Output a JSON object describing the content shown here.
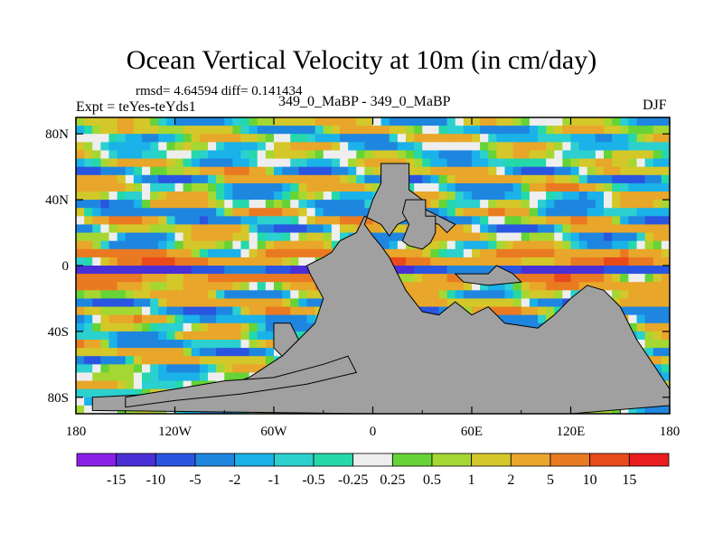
{
  "chart_data": {
    "type": "heatmap",
    "title": "Ocean Vertical Velocity at 10m (in cm/day)",
    "stats_text": "rmsd= 4.64594 diff= 0.141434",
    "experiment_text": "Expt = teYes-teYds1",
    "period_text": "349_0_MaBP - 349_0_MaBP",
    "season": "DJF",
    "x_axis": {
      "range": [
        -180,
        180
      ],
      "ticks": [
        -180,
        -120,
        -60,
        0,
        60,
        120,
        180
      ],
      "tick_labels": [
        "180",
        "120W",
        "60W",
        "0",
        "60E",
        "120E",
        "180"
      ]
    },
    "y_axis": {
      "range": [
        -90,
        90
      ],
      "ticks": [
        80,
        40,
        0,
        -40,
        -80
      ],
      "tick_labels": [
        "80N",
        "40N",
        "0",
        "40S",
        "80S"
      ]
    },
    "colorbar": {
      "labels": [
        "-15",
        "-10",
        "-5",
        "-2",
        "-1",
        "-0.5",
        "-0.25",
        "0.25",
        "0.5",
        "1",
        "2",
        "5",
        "10",
        "15"
      ],
      "colors": [
        "#8a20e8",
        "#4b2fd6",
        "#2a55e0",
        "#1f86e0",
        "#1ab2e8",
        "#2bd0cf",
        "#24d8aa",
        "#eeeeee",
        "#66d336",
        "#a5d732",
        "#d4c72a",
        "#e8a62a",
        "#ea7a22",
        "#e84a1c",
        "#e81e1e"
      ]
    },
    "land_color": "#a0a0a0",
    "land_outlines": [
      {
        "name": "northern-continent",
        "points": [
          [
            5,
            62
          ],
          [
            22,
            62
          ],
          [
            22,
            46
          ],
          [
            30,
            40
          ],
          [
            30,
            35
          ],
          [
            40,
            30
          ],
          [
            50,
            25
          ],
          [
            45,
            20
          ],
          [
            40,
            25
          ],
          [
            30,
            28
          ],
          [
            25,
            30
          ],
          [
            15,
            25
          ],
          [
            10,
            18
          ],
          [
            5,
            25
          ],
          [
            -5,
            30
          ],
          [
            -10,
            20
          ],
          [
            -20,
            15
          ],
          [
            -25,
            8
          ],
          [
            -30,
            5
          ],
          [
            -40,
            0
          ],
          [
            -38,
            -5
          ],
          [
            -30,
            -20
          ],
          [
            -35,
            -35
          ],
          [
            -45,
            -45
          ],
          [
            -55,
            -55
          ],
          [
            -75,
            -68
          ],
          [
            -95,
            -75
          ],
          [
            -130,
            -78
          ],
          [
            -170,
            -80
          ],
          [
            -170,
            -88
          ],
          [
            0,
            -90
          ],
          [
            120,
            -90
          ],
          [
            180,
            -85
          ],
          [
            180,
            -75
          ],
          [
            170,
            -60
          ],
          [
            160,
            -45
          ],
          [
            150,
            -25
          ],
          [
            140,
            -15
          ],
          [
            130,
            -12
          ],
          [
            120,
            -20
          ],
          [
            110,
            -30
          ],
          [
            100,
            -38
          ],
          [
            80,
            -35
          ],
          [
            70,
            -25
          ],
          [
            60,
            -30
          ],
          [
            50,
            -22
          ],
          [
            40,
            -30
          ],
          [
            30,
            -28
          ],
          [
            20,
            -15
          ],
          [
            15,
            -5
          ],
          [
            10,
            5
          ],
          [
            5,
            12
          ],
          [
            0,
            18
          ],
          [
            -5,
            25
          ],
          [
            0,
            40
          ],
          [
            5,
            50
          ]
        ]
      },
      {
        "name": "central-landmass",
        "points": [
          [
            20,
            40
          ],
          [
            32,
            40
          ],
          [
            32,
            30
          ],
          [
            38,
            30
          ],
          [
            38,
            20
          ],
          [
            35,
            14
          ],
          [
            30,
            10
          ],
          [
            22,
            12
          ],
          [
            18,
            15
          ],
          [
            22,
            25
          ],
          [
            18,
            32
          ]
        ]
      },
      {
        "name": "equatorial-island-east",
        "points": [
          [
            50,
            -5
          ],
          [
            70,
            -5
          ],
          [
            75,
            0
          ],
          [
            85,
            -5
          ],
          [
            90,
            -10
          ],
          [
            70,
            -12
          ],
          [
            55,
            -10
          ]
        ]
      },
      {
        "name": "southern-peninsula-west",
        "points": [
          [
            -60,
            -35
          ],
          [
            -50,
            -35
          ],
          [
            -45,
            -45
          ],
          [
            -55,
            -55
          ],
          [
            -60,
            -50
          ]
        ]
      },
      {
        "name": "southwest-shelf",
        "points": [
          [
            -150,
            -80
          ],
          [
            -120,
            -75
          ],
          [
            -90,
            -70
          ],
          [
            -60,
            -68
          ],
          [
            -30,
            -60
          ],
          [
            -15,
            -55
          ],
          [
            -10,
            -65
          ],
          [
            -40,
            -72
          ],
          [
            -80,
            -78
          ],
          [
            -120,
            -82
          ],
          [
            -150,
            -86
          ]
        ]
      }
    ]
  }
}
